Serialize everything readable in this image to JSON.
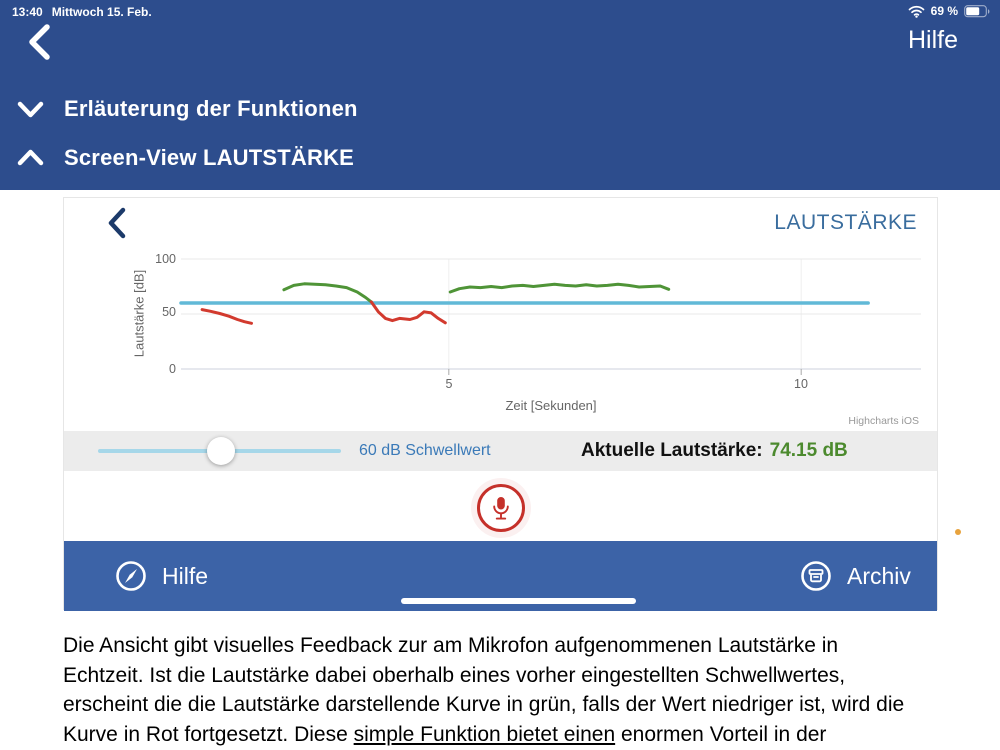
{
  "status_bar": {
    "time": "13:40",
    "date": "Mittwoch 15. Feb.",
    "battery_percent": "69 %"
  },
  "header": {
    "help_label": "Hilfe"
  },
  "sections": [
    {
      "label": "Erläuterung der Funktionen",
      "state": "collapsed"
    },
    {
      "label": "Screen-View LAUTSTÄRKE",
      "state": "expanded"
    }
  ],
  "screen_view": {
    "title": "LAUTSTÄRKE",
    "threshold_label": "60 dB Schwellwert",
    "current_volume_label": "Aktuelle Lautstärke:",
    "current_volume_value": "74.15 dB",
    "tab_hilfe_label": "Hilfe",
    "tab_archiv_label": "Archiv",
    "credits": "Highcharts iOS"
  },
  "chart_data": {
    "type": "line",
    "title": "",
    "xlabel": "Zeit [Sekunden]",
    "ylabel": "Lautstärke [dB]",
    "xlim": [
      1.2,
      11.7
    ],
    "ylim": [
      0,
      100
    ],
    "xticks": [
      5,
      10
    ],
    "yticks": [
      0,
      50,
      100
    ],
    "grid": true,
    "legend": false,
    "threshold": {
      "value": 60,
      "x_start": 1.2,
      "x_end": 10.95,
      "color": "#61b9d7"
    },
    "series": [
      {
        "name": "below-threshold-1",
        "color": "#d23a2e",
        "points": [
          [
            1.5,
            54
          ],
          [
            1.62,
            52.5
          ],
          [
            1.75,
            50.5
          ],
          [
            1.88,
            48
          ],
          [
            2.0,
            45
          ],
          [
            2.1,
            43
          ],
          [
            2.2,
            41.5
          ]
        ]
      },
      {
        "name": "above-threshold-1",
        "color": "#4f9437",
        "points": [
          [
            2.66,
            72
          ],
          [
            2.8,
            76
          ],
          [
            2.95,
            77.5
          ],
          [
            3.1,
            77
          ],
          [
            3.25,
            76.5
          ],
          [
            3.4,
            75.5
          ],
          [
            3.55,
            74
          ],
          [
            3.7,
            70
          ],
          [
            3.82,
            65
          ],
          [
            3.9,
            61
          ]
        ]
      },
      {
        "name": "below-threshold-2",
        "color": "#d23a2e",
        "points": [
          [
            3.9,
            61
          ],
          [
            4.0,
            52
          ],
          [
            4.1,
            46
          ],
          [
            4.2,
            44
          ],
          [
            4.3,
            46
          ],
          [
            4.45,
            45
          ],
          [
            4.55,
            47
          ],
          [
            4.65,
            52
          ],
          [
            4.75,
            51
          ],
          [
            4.85,
            46
          ],
          [
            4.95,
            42
          ]
        ]
      },
      {
        "name": "above-threshold-2",
        "color": "#4f9437",
        "points": [
          [
            5.02,
            70
          ],
          [
            5.15,
            73
          ],
          [
            5.3,
            74.5
          ],
          [
            5.45,
            74
          ],
          [
            5.6,
            75
          ],
          [
            5.75,
            74
          ],
          [
            5.9,
            75.5
          ],
          [
            6.05,
            76
          ],
          [
            6.2,
            75
          ],
          [
            6.35,
            76
          ],
          [
            6.5,
            77
          ],
          [
            6.65,
            76
          ],
          [
            6.8,
            75.5
          ],
          [
            6.95,
            76.5
          ],
          [
            7.1,
            75.5
          ],
          [
            7.25,
            76
          ],
          [
            7.4,
            77
          ],
          [
            7.55,
            76
          ],
          [
            7.7,
            74.5
          ],
          [
            7.85,
            75
          ],
          [
            8.0,
            75.5
          ],
          [
            8.12,
            72.5
          ]
        ]
      }
    ]
  },
  "body_text": {
    "line1": "Die Ansicht gibt visuelles Feedback zur am Mikrofon aufgenommenen Lautstärke in",
    "line2": "Echtzeit. Ist die Lautstärke dabei oberhalb eines vorher eingestellten Schwellwertes,",
    "line3": "erscheint die die Lautstärke darstellende Kurve in grün, falls der Wert niedriger ist, wird die",
    "line4_pre": "Kurve in Rot fortgesetzt. Diese ",
    "line4_underlined": "simple Funktion bietet einen",
    "line4_post": " enormen Vorteil in der"
  }
}
